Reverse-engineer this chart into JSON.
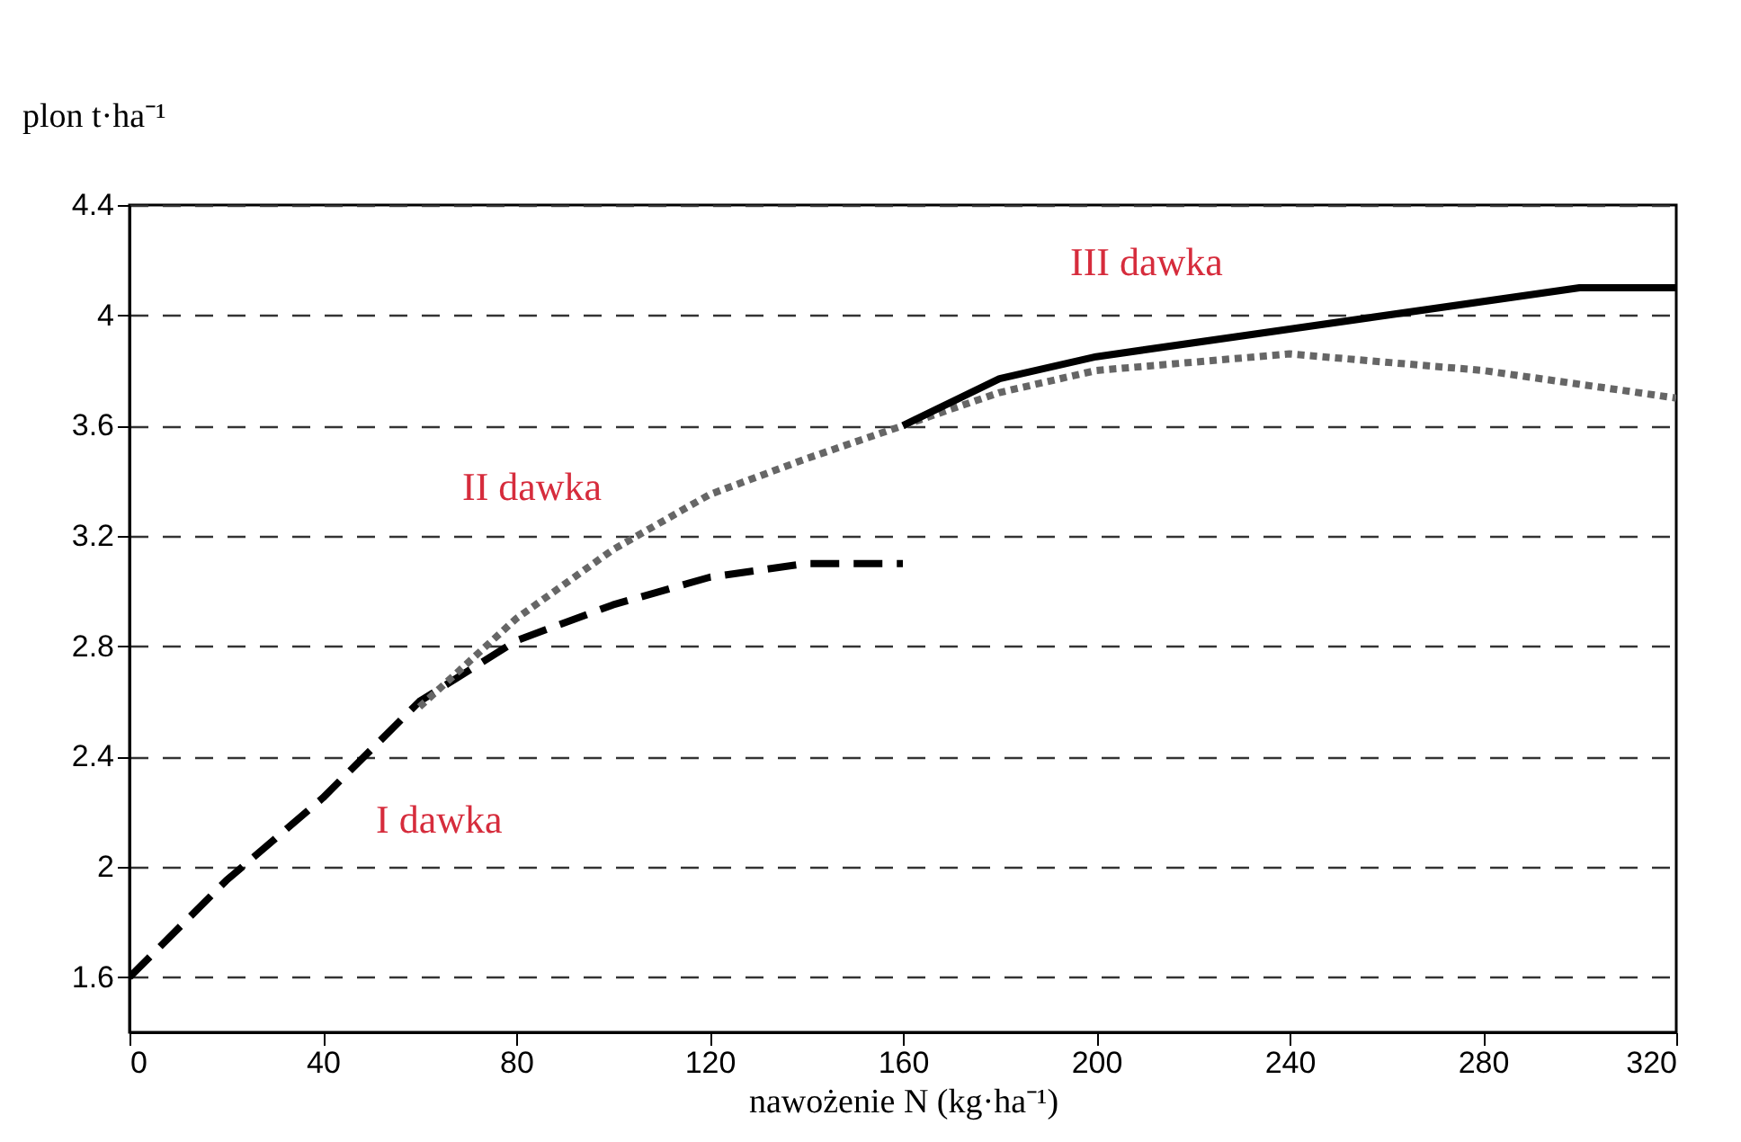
{
  "chart_data": {
    "type": "line",
    "xlabel": "nawożenie N (kg·ha⁻¹)",
    "ylabel": "plon t·ha⁻¹",
    "xlim": [
      0,
      320
    ],
    "xticks": [
      0,
      40,
      80,
      120,
      160,
      200,
      240,
      280,
      320
    ],
    "ylim": [
      1.4,
      4.4
    ],
    "yticks": [
      1.6,
      2,
      2.4,
      2.8,
      3.2,
      3.6,
      4,
      4.4
    ],
    "grid": "y",
    "series": [
      {
        "color": "#000000",
        "line_style": "dashed",
        "x": [
          0,
          20,
          40,
          60,
          80,
          100,
          120,
          140,
          160
        ],
        "values": [
          1.6,
          1.95,
          2.25,
          2.6,
          2.82,
          2.95,
          3.05,
          3.1,
          3.1
        ]
      },
      {
        "color": "#666666",
        "line_style": "dotted",
        "x": [
          60,
          80,
          100,
          120,
          140,
          160,
          180,
          200,
          240,
          280,
          320
        ],
        "values": [
          2.58,
          2.9,
          3.15,
          3.35,
          3.48,
          3.6,
          3.72,
          3.8,
          3.86,
          3.8,
          3.7
        ]
      },
      {
        "color": "#000000",
        "line_style": "solid",
        "x": [
          160,
          180,
          200,
          240,
          300,
          320
        ],
        "values": [
          3.6,
          3.77,
          3.85,
          3.95,
          4.1,
          4.1
        ]
      }
    ],
    "annotations": [
      "I dawka",
      "II dawka",
      "III dawka"
    ]
  }
}
